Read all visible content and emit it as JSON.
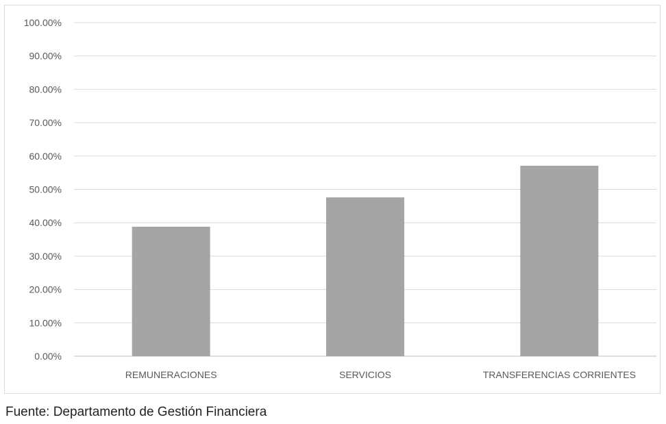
{
  "chart_data": {
    "type": "bar",
    "categories": [
      "REMUNERACIONES",
      "SERVICIOS",
      "TRANSFERENCIAS CORRIENTES"
    ],
    "values": [
      38.8,
      47.6,
      57.1
    ],
    "value_format": "percent",
    "ylim": [
      0,
      100
    ],
    "ytick_step": 10,
    "yticks": [
      "0.00%",
      "10.00%",
      "20.00%",
      "30.00%",
      "40.00%",
      "50.00%",
      "60.00%",
      "70.00%",
      "80.00%",
      "90.00%",
      "100.00%"
    ],
    "title": "",
    "xlabel": "",
    "ylabel": "",
    "grid": true,
    "legend": "none",
    "bar_color": "#a5a5a5",
    "grid_color": "#d9d9d9",
    "text_color": "#595959"
  },
  "source_note": "Fuente:  Departamento de Gestión Financiera"
}
